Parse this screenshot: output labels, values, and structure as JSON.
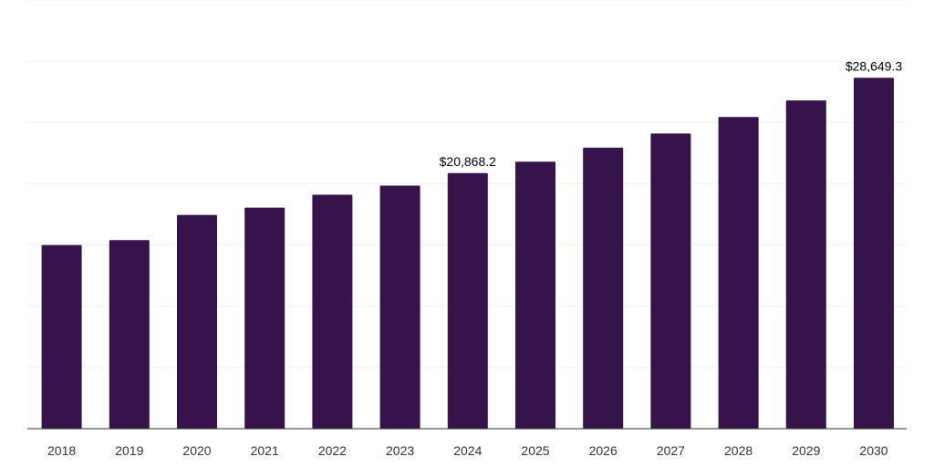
{
  "chart_data": {
    "type": "bar",
    "categories": [
      "2018",
      "2019",
      "2020",
      "2021",
      "2022",
      "2023",
      "2024",
      "2025",
      "2026",
      "2027",
      "2028",
      "2029",
      "2030"
    ],
    "values": [
      15000,
      15400,
      17450,
      18050,
      19100,
      19850,
      20868.2,
      21800,
      22950,
      24100,
      25450,
      26800,
      28649.3
    ],
    "data_labels": [
      {
        "category": "2024",
        "text": "$20,868.2"
      },
      {
        "category": "2030",
        "text": "$28,649.3"
      }
    ],
    "title": "",
    "xlabel": "",
    "ylabel": "",
    "ylim": [
      0,
      35000
    ],
    "y_axis_labels_shown": false,
    "grid": true,
    "legend": "none",
    "colors": {
      "bar": "#36134a",
      "grid": "#f0f0f0",
      "axis": "#333333",
      "tick_text": "#333333",
      "label_text": "#000000"
    }
  }
}
